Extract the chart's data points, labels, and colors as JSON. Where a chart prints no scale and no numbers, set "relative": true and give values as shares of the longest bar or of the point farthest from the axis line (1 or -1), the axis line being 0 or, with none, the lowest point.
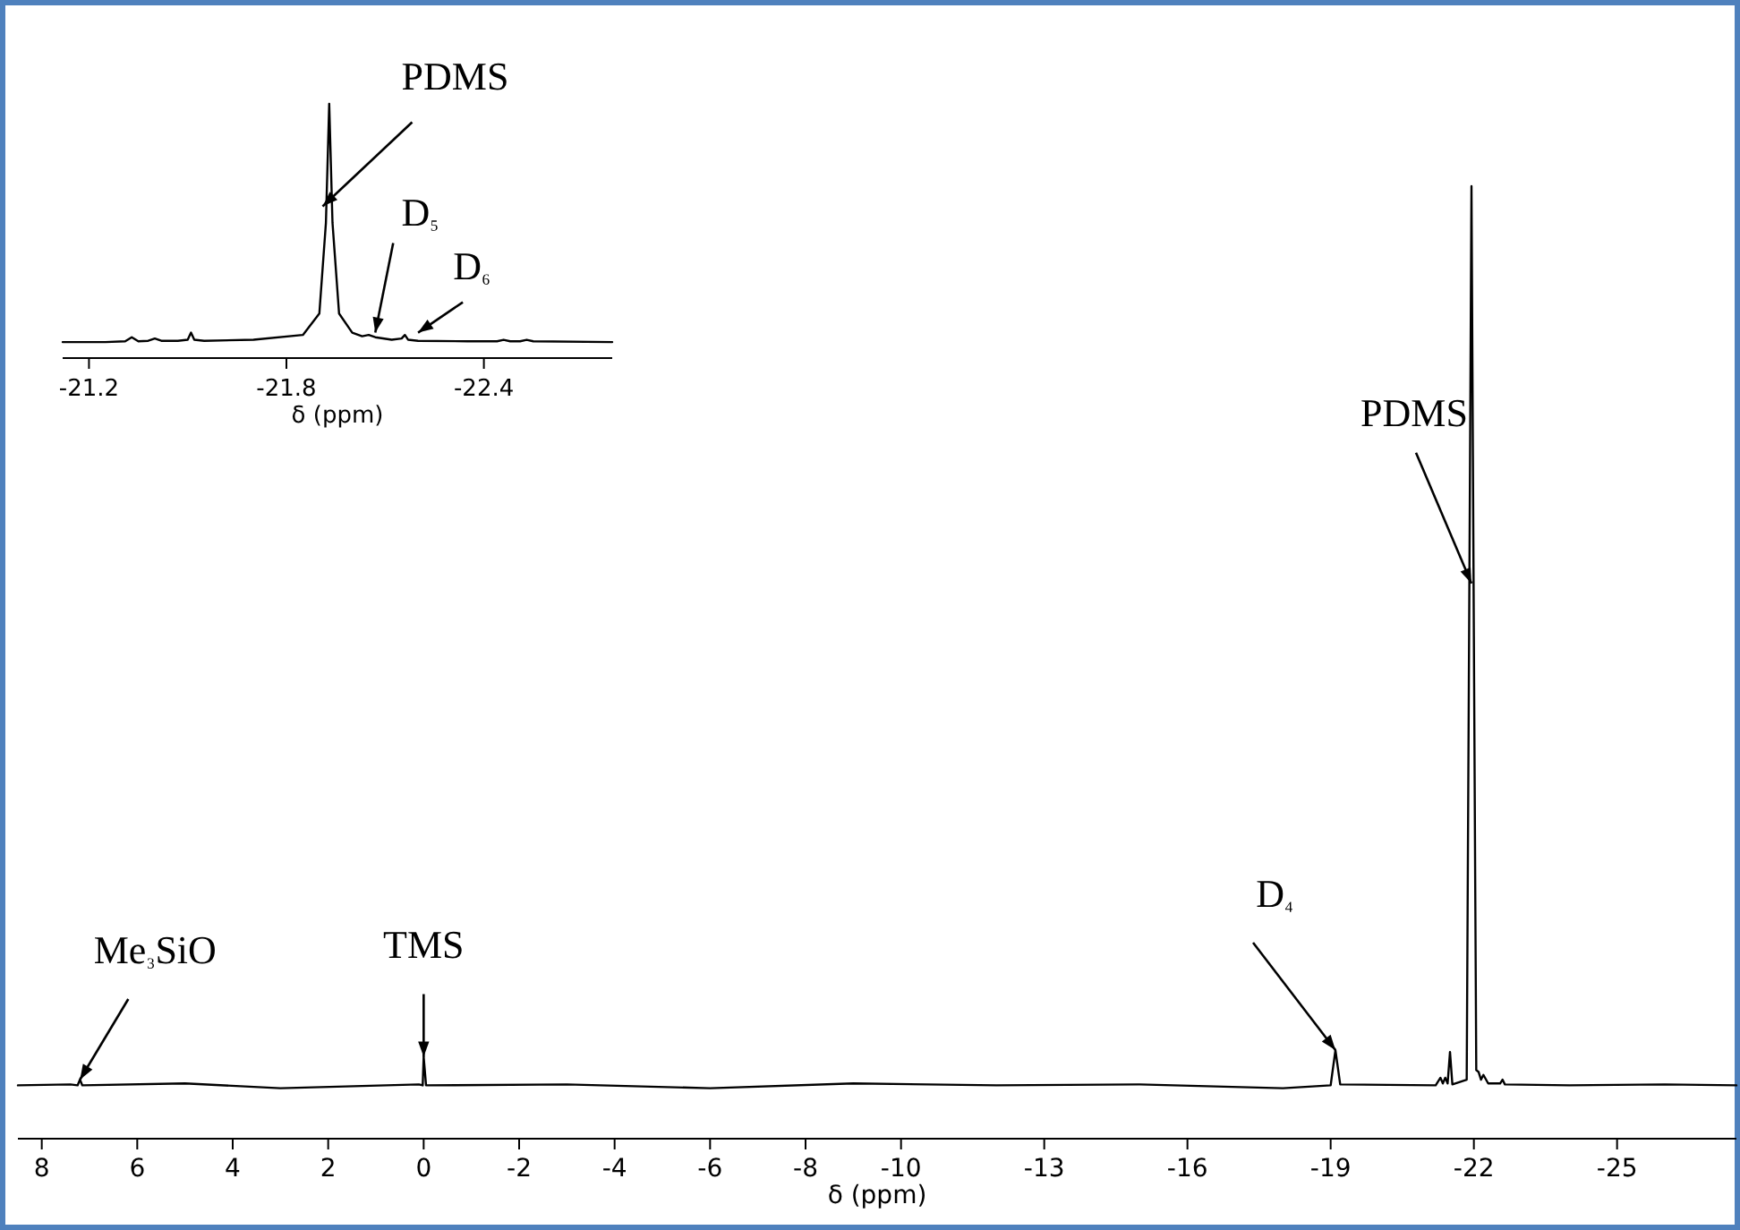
{
  "chart_data": [
    {
      "type": "line",
      "relative": true,
      "xlabel": "δ (ppm)",
      "tick_labels": "x",
      "xlim": [
        8.5,
        -27.5
      ],
      "xticks": [
        8,
        6,
        4,
        2,
        0,
        -2,
        -4,
        -6,
        -8,
        -10,
        -13,
        -16,
        -19,
        -22,
        -25
      ],
      "series": [
        {
          "color": "#000000",
          "x": [
            8.5,
            7.4,
            7.25,
            7.2,
            7.15,
            5,
            3,
            0.1,
            0.02,
            0,
            -0.05,
            -3,
            -6,
            -9,
            -12,
            -15,
            -18,
            -19.0,
            -19.1,
            -19.2,
            -21.2,
            -21.3,
            -21.35,
            -21.4,
            -21.45,
            -21.5,
            -21.55,
            -21.85,
            -21.9,
            -21.95,
            -22.0,
            -22.05,
            -22.1,
            -22.15,
            -22.2,
            -22.3,
            -22.55,
            -22.6,
            -22.65,
            -24,
            -26,
            -27.5
          ],
          "values": [
            0.056,
            0.057,
            0.056,
            0.062,
            0.056,
            0.058,
            0.053,
            0.057,
            0.056,
            0.086,
            0.056,
            0.057,
            0.053,
            0.058,
            0.056,
            0.057,
            0.053,
            0.056,
            0.093,
            0.057,
            0.056,
            0.064,
            0.058,
            0.064,
            0.058,
            0.091,
            0.057,
            0.062,
            0.527,
            1,
            0.527,
            0.072,
            0.07,
            0.062,
            0.067,
            0.058,
            0.058,
            0.062,
            0.057,
            0.056,
            0.057,
            0.056
          ]
        }
      ],
      "annotations": [
        {
          "text": "Me₃SiO",
          "x": 7.2,
          "y": 0.062
        },
        {
          "text": "TMS",
          "x": 0,
          "y": 0.086
        },
        {
          "text": "D₄",
          "x": -19.1,
          "y": 0.093
        },
        {
          "text": "PDMS",
          "x": -21.95,
          "y": 0.583
        }
      ]
    },
    {
      "type": "line",
      "relative": true,
      "xlabel": "δ (ppm)",
      "tick_labels": "x",
      "xlim": [
        -21.12,
        -22.79
      ],
      "xticks": [
        -21.2,
        -21.8,
        -22.4
      ],
      "series": [
        {
          "color": "#000000",
          "x": [
            -21.12,
            -21.25,
            -21.31,
            -21.33,
            -21.35,
            -21.38,
            -21.4,
            -21.42,
            -21.47,
            -21.5,
            -21.51,
            -21.52,
            -21.55,
            -21.7,
            -21.85,
            -21.9,
            -21.92,
            -21.93,
            -21.94,
            -21.96,
            -22.0,
            -22.03,
            -22.05,
            -22.07,
            -22.12,
            -22.15,
            -22.16,
            -22.17,
            -22.2,
            -22.35,
            -22.44,
            -22.46,
            -22.48,
            -22.51,
            -22.53,
            -22.55,
            -22.79
          ],
          "values": [
            0.063,
            0.063,
            0.066,
            0.082,
            0.066,
            0.068,
            0.077,
            0.068,
            0.068,
            0.072,
            0.1,
            0.072,
            0.068,
            0.072,
            0.091,
            0.175,
            0.532,
            1,
            0.532,
            0.175,
            0.1,
            0.086,
            0.091,
            0.082,
            0.072,
            0.077,
            0.091,
            0.072,
            0.068,
            0.066,
            0.066,
            0.072,
            0.066,
            0.066,
            0.072,
            0.066,
            0.063
          ]
        }
      ],
      "annotations": [
        {
          "text": "PDMS",
          "x": -21.91,
          "y": 0.597
        },
        {
          "text": "D₅",
          "x": -22.07,
          "y": 0.1
        },
        {
          "text": "D₆",
          "x": -22.2,
          "y": 0.1
        }
      ]
    }
  ]
}
